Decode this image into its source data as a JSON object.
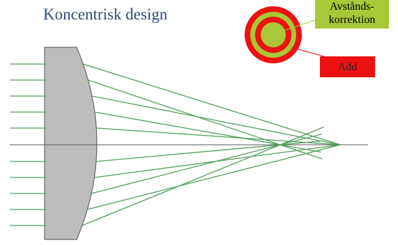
{
  "title": "Koncentrisk design",
  "labels": {
    "distance_line1": "Avstånds-",
    "distance_line2": "korrektion",
    "add": "Add"
  },
  "colors": {
    "title": "#2f4a7a",
    "zone_red": "#ee1111",
    "zone_green": "#a8c838",
    "ray": "#4f9f5a",
    "lens_fill": "#bdbdbd",
    "lens_stroke": "#666666",
    "axis": "#555555"
  }
}
